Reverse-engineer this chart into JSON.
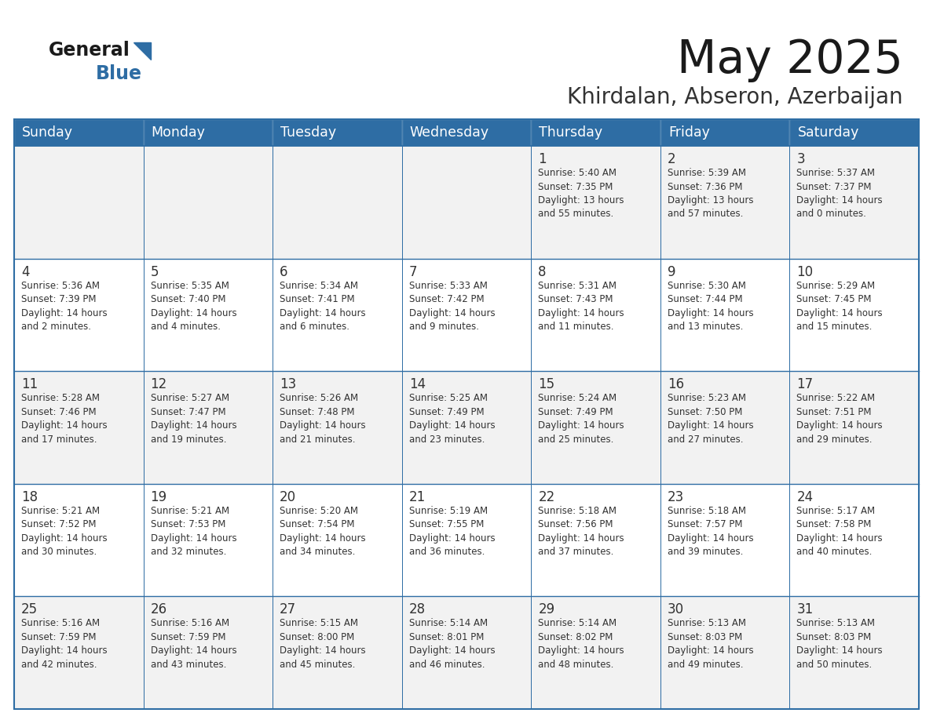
{
  "title": "May 2025",
  "subtitle": "Khirdalan, Abseron, Azerbaijan",
  "header_bg": "#2E6DA4",
  "header_text_color": "#FFFFFF",
  "cell_bg_odd": "#F2F2F2",
  "cell_bg_even": "#FFFFFF",
  "border_color": "#2E6DA4",
  "text_color": "#333333",
  "days_of_week": [
    "Sunday",
    "Monday",
    "Tuesday",
    "Wednesday",
    "Thursday",
    "Friday",
    "Saturday"
  ],
  "weeks": [
    [
      {
        "day": "",
        "info": ""
      },
      {
        "day": "",
        "info": ""
      },
      {
        "day": "",
        "info": ""
      },
      {
        "day": "",
        "info": ""
      },
      {
        "day": "1",
        "info": "Sunrise: 5:40 AM\nSunset: 7:35 PM\nDaylight: 13 hours\nand 55 minutes."
      },
      {
        "day": "2",
        "info": "Sunrise: 5:39 AM\nSunset: 7:36 PM\nDaylight: 13 hours\nand 57 minutes."
      },
      {
        "day": "3",
        "info": "Sunrise: 5:37 AM\nSunset: 7:37 PM\nDaylight: 14 hours\nand 0 minutes."
      }
    ],
    [
      {
        "day": "4",
        "info": "Sunrise: 5:36 AM\nSunset: 7:39 PM\nDaylight: 14 hours\nand 2 minutes."
      },
      {
        "day": "5",
        "info": "Sunrise: 5:35 AM\nSunset: 7:40 PM\nDaylight: 14 hours\nand 4 minutes."
      },
      {
        "day": "6",
        "info": "Sunrise: 5:34 AM\nSunset: 7:41 PM\nDaylight: 14 hours\nand 6 minutes."
      },
      {
        "day": "7",
        "info": "Sunrise: 5:33 AM\nSunset: 7:42 PM\nDaylight: 14 hours\nand 9 minutes."
      },
      {
        "day": "8",
        "info": "Sunrise: 5:31 AM\nSunset: 7:43 PM\nDaylight: 14 hours\nand 11 minutes."
      },
      {
        "day": "9",
        "info": "Sunrise: 5:30 AM\nSunset: 7:44 PM\nDaylight: 14 hours\nand 13 minutes."
      },
      {
        "day": "10",
        "info": "Sunrise: 5:29 AM\nSunset: 7:45 PM\nDaylight: 14 hours\nand 15 minutes."
      }
    ],
    [
      {
        "day": "11",
        "info": "Sunrise: 5:28 AM\nSunset: 7:46 PM\nDaylight: 14 hours\nand 17 minutes."
      },
      {
        "day": "12",
        "info": "Sunrise: 5:27 AM\nSunset: 7:47 PM\nDaylight: 14 hours\nand 19 minutes."
      },
      {
        "day": "13",
        "info": "Sunrise: 5:26 AM\nSunset: 7:48 PM\nDaylight: 14 hours\nand 21 minutes."
      },
      {
        "day": "14",
        "info": "Sunrise: 5:25 AM\nSunset: 7:49 PM\nDaylight: 14 hours\nand 23 minutes."
      },
      {
        "day": "15",
        "info": "Sunrise: 5:24 AM\nSunset: 7:49 PM\nDaylight: 14 hours\nand 25 minutes."
      },
      {
        "day": "16",
        "info": "Sunrise: 5:23 AM\nSunset: 7:50 PM\nDaylight: 14 hours\nand 27 minutes."
      },
      {
        "day": "17",
        "info": "Sunrise: 5:22 AM\nSunset: 7:51 PM\nDaylight: 14 hours\nand 29 minutes."
      }
    ],
    [
      {
        "day": "18",
        "info": "Sunrise: 5:21 AM\nSunset: 7:52 PM\nDaylight: 14 hours\nand 30 minutes."
      },
      {
        "day": "19",
        "info": "Sunrise: 5:21 AM\nSunset: 7:53 PM\nDaylight: 14 hours\nand 32 minutes."
      },
      {
        "day": "20",
        "info": "Sunrise: 5:20 AM\nSunset: 7:54 PM\nDaylight: 14 hours\nand 34 minutes."
      },
      {
        "day": "21",
        "info": "Sunrise: 5:19 AM\nSunset: 7:55 PM\nDaylight: 14 hours\nand 36 minutes."
      },
      {
        "day": "22",
        "info": "Sunrise: 5:18 AM\nSunset: 7:56 PM\nDaylight: 14 hours\nand 37 minutes."
      },
      {
        "day": "23",
        "info": "Sunrise: 5:18 AM\nSunset: 7:57 PM\nDaylight: 14 hours\nand 39 minutes."
      },
      {
        "day": "24",
        "info": "Sunrise: 5:17 AM\nSunset: 7:58 PM\nDaylight: 14 hours\nand 40 minutes."
      }
    ],
    [
      {
        "day": "25",
        "info": "Sunrise: 5:16 AM\nSunset: 7:59 PM\nDaylight: 14 hours\nand 42 minutes."
      },
      {
        "day": "26",
        "info": "Sunrise: 5:16 AM\nSunset: 7:59 PM\nDaylight: 14 hours\nand 43 minutes."
      },
      {
        "day": "27",
        "info": "Sunrise: 5:15 AM\nSunset: 8:00 PM\nDaylight: 14 hours\nand 45 minutes."
      },
      {
        "day": "28",
        "info": "Sunrise: 5:14 AM\nSunset: 8:01 PM\nDaylight: 14 hours\nand 46 minutes."
      },
      {
        "day": "29",
        "info": "Sunrise: 5:14 AM\nSunset: 8:02 PM\nDaylight: 14 hours\nand 48 minutes."
      },
      {
        "day": "30",
        "info": "Sunrise: 5:13 AM\nSunset: 8:03 PM\nDaylight: 14 hours\nand 49 minutes."
      },
      {
        "day": "31",
        "info": "Sunrise: 5:13 AM\nSunset: 8:03 PM\nDaylight: 14 hours\nand 50 minutes."
      }
    ]
  ]
}
